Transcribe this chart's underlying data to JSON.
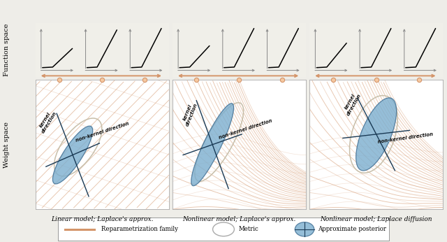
{
  "panel_titles": [
    "Linear model; Laplace's approx.",
    "Nonlinear model; Laplace's approx.",
    "Nonlinear model; Laplace diffusion"
  ],
  "y_label_function": "Function space",
  "y_label_weight": "Weight space",
  "bg_color": "#eeede8",
  "panel_bg": "#ffffff",
  "orange_color": "#d4956a",
  "blue_fill": "#7baecf",
  "blue_dark": "#3a6a90",
  "metric_edge": "#c8bfaa",
  "legend_items": [
    "Reparametrization family",
    "Metric",
    "Approximate posterior"
  ],
  "func_bg": "#f0efe9",
  "panel0_lines_diagonal": true,
  "panel1_lines_curved": true,
  "panel2_lines_curved": true
}
